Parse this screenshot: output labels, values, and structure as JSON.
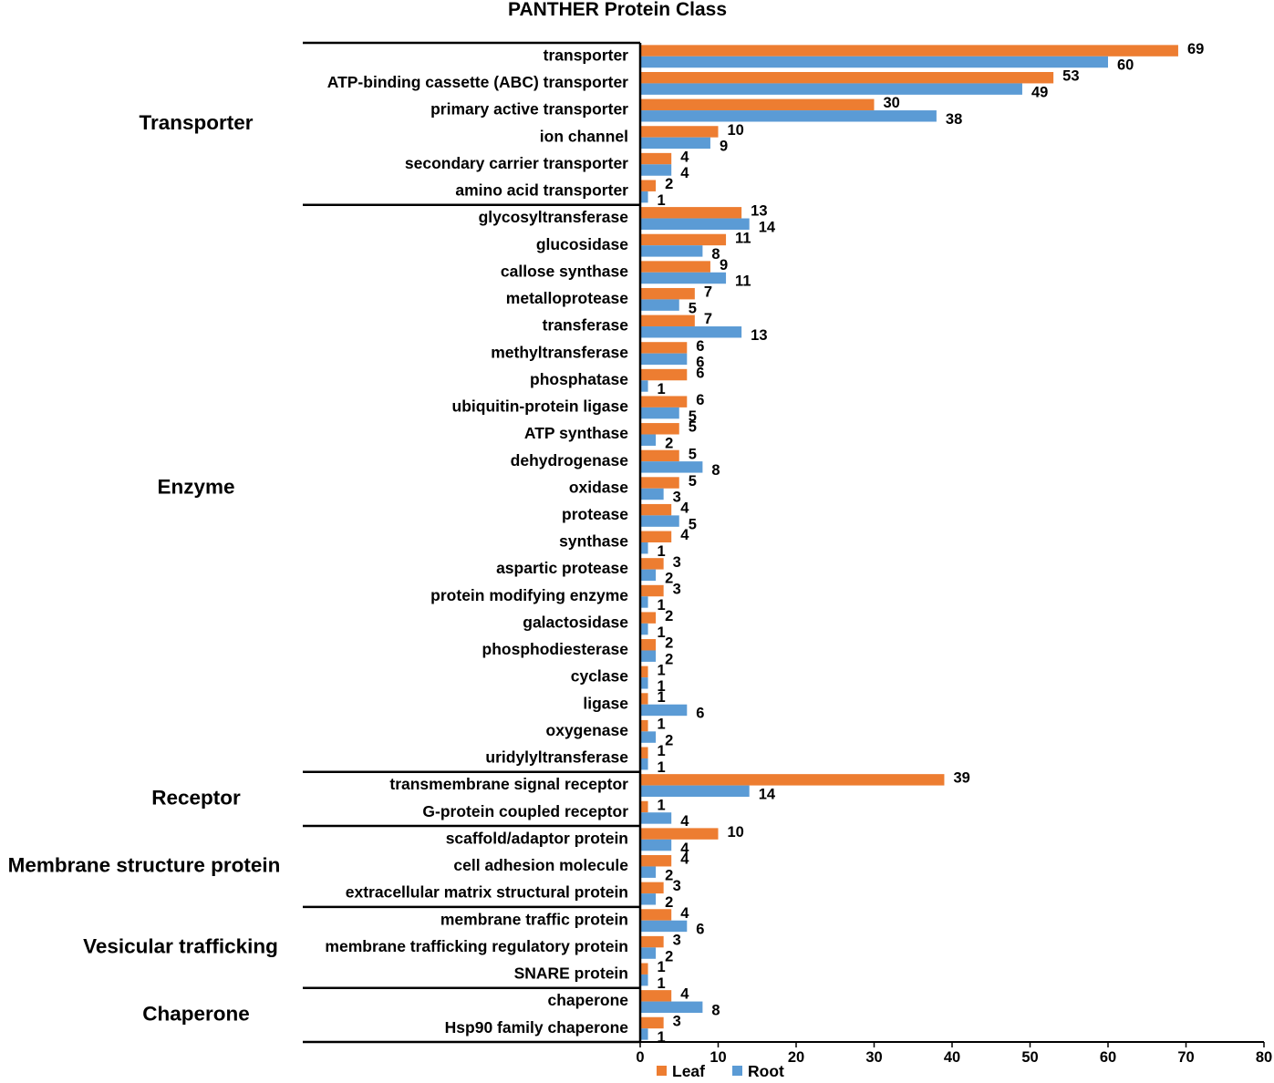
{
  "chart_data": {
    "type": "bar",
    "orientation": "horizontal",
    "title": "PANTHER Protein Class",
    "xlim": [
      0,
      80
    ],
    "xticks": [
      0,
      10,
      20,
      30,
      40,
      50,
      60,
      70,
      80
    ],
    "legend_position": "bottom",
    "colors": {
      "Leaf": "#ED7D31",
      "Root": "#5B9BD5"
    },
    "series_names": [
      "Leaf",
      "Root"
    ],
    "groups": [
      {
        "name": "Transporter",
        "items": [
          {
            "label": "transporter",
            "leaf": 69,
            "root": 60
          },
          {
            "label": "ATP-binding cassette (ABC) transporter",
            "leaf": 53,
            "root": 49
          },
          {
            "label": "primary active transporter",
            "leaf": 30,
            "root": 38
          },
          {
            "label": "ion channel",
            "leaf": 10,
            "root": 9
          },
          {
            "label": "secondary carrier transporter",
            "leaf": 4,
            "root": 4
          },
          {
            "label": "amino acid transporter",
            "leaf": 2,
            "root": 1
          }
        ]
      },
      {
        "name": "Enzyme",
        "items": [
          {
            "label": "glycosyltransferase",
            "leaf": 13,
            "root": 14
          },
          {
            "label": "glucosidase",
            "leaf": 11,
            "root": 8
          },
          {
            "label": "callose synthase",
            "leaf": 9,
            "root": 11
          },
          {
            "label": "metalloprotease",
            "leaf": 7,
            "root": 5
          },
          {
            "label": "transferase",
            "leaf": 7,
            "root": 13
          },
          {
            "label": "methyltransferase",
            "leaf": 6,
            "root": 6
          },
          {
            "label": "phosphatase",
            "leaf": 6,
            "root": 1
          },
          {
            "label": "ubiquitin-protein ligase",
            "leaf": 6,
            "root": 5
          },
          {
            "label": "ATP synthase",
            "leaf": 5,
            "root": 2
          },
          {
            "label": "dehydrogenase",
            "leaf": 5,
            "root": 8
          },
          {
            "label": "oxidase",
            "leaf": 5,
            "root": 3
          },
          {
            "label": "protease",
            "leaf": 4,
            "root": 5
          },
          {
            "label": "synthase",
            "leaf": 4,
            "root": 1
          },
          {
            "label": "aspartic protease",
            "leaf": 3,
            "root": 2
          },
          {
            "label": "protein modifying enzyme",
            "leaf": 3,
            "root": 1
          },
          {
            "label": "galactosidase",
            "leaf": 2,
            "root": 1
          },
          {
            "label": "phosphodiesterase",
            "leaf": 2,
            "root": 2
          },
          {
            "label": "cyclase",
            "leaf": 1,
            "root": 1
          },
          {
            "label": "ligase",
            "leaf": 1,
            "root": 6
          },
          {
            "label": "oxygenase",
            "leaf": 1,
            "root": 2
          },
          {
            "label": "uridylyltransferase",
            "leaf": 1,
            "root": 1
          }
        ]
      },
      {
        "name": "Receptor",
        "items": [
          {
            "label": "transmembrane signal receptor",
            "leaf": 39,
            "root": 14
          },
          {
            "label": "G-protein coupled receptor",
            "leaf": 1,
            "root": 4
          }
        ]
      },
      {
        "name": "Membrane structure protein",
        "items": [
          {
            "label": "scaffold/adaptor protein",
            "leaf": 10,
            "root": 4
          },
          {
            "label": "cell adhesion molecule",
            "leaf": 4,
            "root": 2
          },
          {
            "label": "extracellular matrix structural protein",
            "leaf": 3,
            "root": 2
          }
        ]
      },
      {
        "name": "Vesicular trafficking",
        "items": [
          {
            "label": "membrane traffic protein",
            "leaf": 4,
            "root": 6
          },
          {
            "label": "membrane trafficking regulatory protein",
            "leaf": 3,
            "root": 2
          },
          {
            "label": "SNARE protein",
            "leaf": 1,
            "root": 1
          }
        ]
      },
      {
        "name": "Chaperone",
        "items": [
          {
            "label": "chaperone",
            "leaf": 4,
            "root": 8
          },
          {
            "label": "Hsp90 family chaperone",
            "leaf": 3,
            "root": 1
          }
        ]
      }
    ]
  }
}
